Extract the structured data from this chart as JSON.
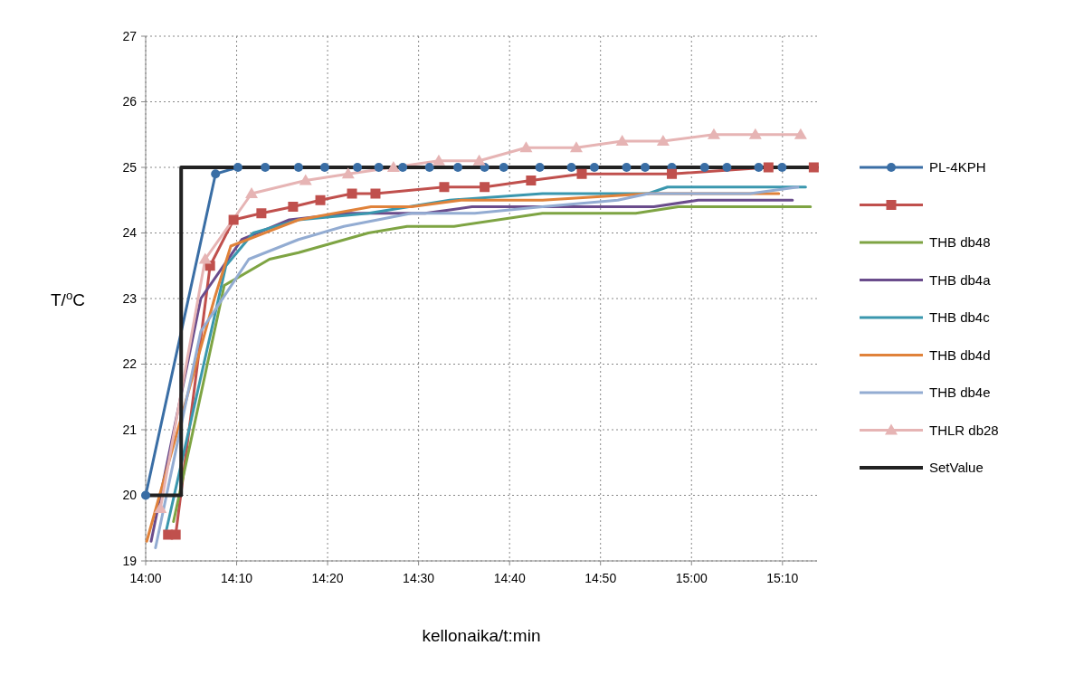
{
  "chart_data": {
    "type": "line",
    "xlabel": "kellonaika/t:min",
    "ylabel": "T/$^{o}$C",
    "xlim": [
      14,
      15.23
    ],
    "ylim": [
      19,
      27
    ],
    "xticks": [
      {
        "value": 14,
        "label": "14:00"
      },
      {
        "value": 14.1667,
        "label": "14:10"
      },
      {
        "value": 14.3333,
        "label": "14:20"
      },
      {
        "value": 14.5,
        "label": "14:30"
      },
      {
        "value": 14.6667,
        "label": "14:40"
      },
      {
        "value": 14.8333,
        "label": "14:50"
      },
      {
        "value": 15,
        "label": "15:00"
      },
      {
        "value": 15.1667,
        "label": "15:10"
      }
    ],
    "yticks": [
      19,
      20,
      21,
      22,
      23,
      24,
      25,
      26,
      27
    ],
    "grid": true,
    "legend": "right",
    "line_style": "solid",
    "series": [
      {
        "name": "PL-4KPH",
        "color": "#3a6ea5",
        "marker": "circle",
        "x": [
          14,
          14.128,
          14.169,
          14.219,
          14.28,
          14.328,
          14.388,
          14.427,
          14.471,
          14.52,
          14.572,
          14.621,
          14.656,
          14.722,
          14.78,
          14.822,
          14.881,
          14.915,
          14.964,
          15.024,
          15.065,
          15.123,
          15.166
        ],
        "values": [
          20,
          24.9,
          25,
          25,
          25,
          25,
          25,
          25,
          25,
          25,
          25,
          25,
          25,
          25,
          25,
          25,
          25,
          25,
          25,
          25,
          25,
          25,
          25
        ]
      },
      {
        "color": "#c0504d",
        "marker": "square",
        "x": [
          14.041,
          14.055,
          14.118,
          14.161,
          14.212,
          14.27,
          14.32,
          14.378,
          14.421,
          14.547,
          14.621,
          14.706,
          14.799,
          14.964,
          15.141,
          15.224
        ],
        "values": [
          19.4,
          19.4,
          23.5,
          24.2,
          24.3,
          24.4,
          24.5,
          24.6,
          24.6,
          24.7,
          24.7,
          24.8,
          24.9,
          24.9,
          25,
          25
        ]
      },
      {
        "name": "THB db48",
        "color": "#7ea443",
        "marker": "none",
        "x": [
          14.051,
          14.144,
          14.227,
          14.28,
          14.408,
          14.479,
          14.565,
          14.727,
          14.898,
          14.976,
          15.218
        ],
        "values": [
          19.6,
          23.2,
          23.6,
          23.7,
          24.0,
          24.1,
          24.1,
          24.3,
          24.3,
          24.4,
          24.4
        ]
      },
      {
        "name": "THB db4a",
        "color": "#6a4c8c",
        "marker": "none",
        "x": [
          14.01,
          14.101,
          14.176,
          14.263,
          14.371,
          14.512,
          14.598,
          14.931,
          15.012,
          15.185
        ],
        "values": [
          19.3,
          23.0,
          23.9,
          24.2,
          24.3,
          24.3,
          24.4,
          24.4,
          24.5,
          24.5
        ]
      },
      {
        "name": "THB db4c",
        "color": "#3a97ae",
        "marker": "none",
        "x": [
          14.036,
          14.147,
          14.197,
          14.28,
          14.408,
          14.557,
          14.727,
          14.921,
          14.956,
          15.209
        ],
        "values": [
          19.4,
          23.5,
          24.0,
          24.2,
          24.3,
          24.5,
          24.6,
          24.6,
          24.7,
          24.7
        ]
      },
      {
        "name": "THB db4d",
        "color": "#e0823a",
        "marker": "none",
        "x": [
          14.002,
          14.126,
          14.156,
          14.28,
          14.413,
          14.487,
          14.578,
          14.727,
          14.921,
          15.16
        ],
        "values": [
          19.3,
          23.0,
          23.8,
          24.2,
          24.4,
          24.4,
          24.5,
          24.5,
          24.6,
          24.6
        ]
      },
      {
        "name": "THB db4e",
        "color": "#93acd2",
        "marker": "none",
        "x": [
          14.018,
          14.101,
          14.189,
          14.28,
          14.363,
          14.487,
          14.603,
          14.727,
          14.865,
          14.921,
          15.107,
          15.195
        ],
        "values": [
          19.2,
          22.5,
          23.6,
          23.9,
          24.1,
          24.3,
          24.3,
          24.4,
          24.5,
          24.6,
          24.6,
          24.7
        ]
      },
      {
        "name": "THLR db28",
        "color": "#e6b4b4",
        "marker": "triangle",
        "x": [
          14.027,
          14.109,
          14.194,
          14.293,
          14.371,
          14.454,
          14.537,
          14.611,
          14.697,
          14.789,
          14.873,
          14.948,
          15.041,
          15.117,
          15.2
        ],
        "values": [
          19.8,
          23.6,
          24.6,
          24.8,
          24.9,
          25.0,
          25.1,
          25.1,
          25.3,
          25.3,
          25.4,
          25.4,
          25.5,
          25.5,
          25.5
        ]
      },
      {
        "name": "SetValue",
        "type": "step",
        "color": "#222222",
        "marker": "none",
        "x": [
          14,
          14.065,
          15.23
        ],
        "values": [
          20,
          25,
          25
        ]
      }
    ]
  }
}
